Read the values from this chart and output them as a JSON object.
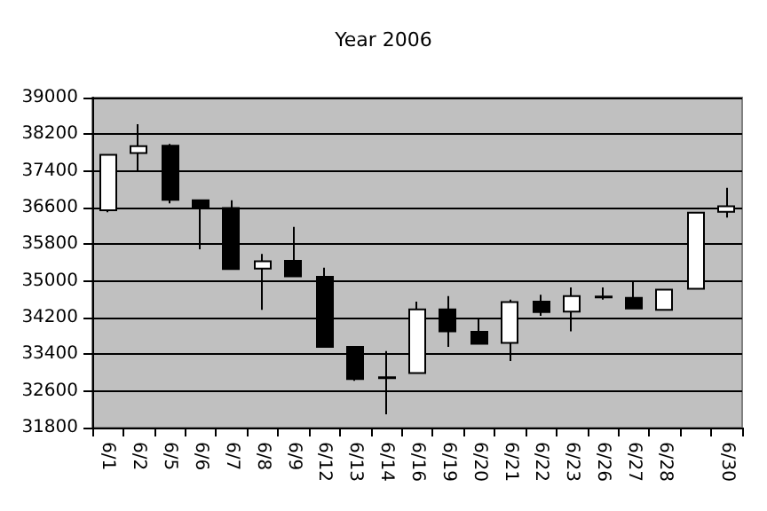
{
  "chart_data": {
    "type": "candlestick",
    "title": "Year 2006",
    "categories": [
      "6/1",
      "6/2",
      "6/5",
      "6/6",
      "6/7",
      "6/8",
      "6/9",
      "6/12",
      "6/13",
      "6/14",
      "6/16",
      "6/19",
      "6/20",
      "6/21",
      "6/22",
      "6/23",
      "6/26",
      "6/27",
      "6/28",
      null,
      "6/30"
    ],
    "ohlc": [
      [
        36540,
        37750,
        36500,
        37750
      ],
      [
        37790,
        38420,
        37410,
        37940
      ],
      [
        37950,
        37990,
        36690,
        36770
      ],
      [
        36760,
        36760,
        35690,
        36590
      ],
      [
        36590,
        36760,
        35260,
        35260
      ],
      [
        35270,
        35590,
        34370,
        35430
      ],
      [
        35440,
        36180,
        35100,
        35100
      ],
      [
        35090,
        35290,
        33560,
        33560
      ],
      [
        33560,
        33580,
        32820,
        32860
      ],
      [
        32900,
        33470,
        32090,
        32880
      ],
      [
        32990,
        34550,
        32990,
        34380
      ],
      [
        34380,
        34670,
        33560,
        33900
      ],
      [
        33890,
        34180,
        33630,
        33630
      ],
      [
        33650,
        34590,
        33250,
        34540
      ],
      [
        34550,
        34700,
        34240,
        34320
      ],
      [
        34330,
        34860,
        33900,
        34670
      ],
      [
        34660,
        34860,
        34590,
        34640
      ],
      [
        34630,
        35000,
        34400,
        34400
      ],
      [
        34370,
        34810,
        34370,
        34810
      ],
      [
        34830,
        36490,
        34830,
        36490
      ],
      [
        36510,
        37030,
        36380,
        36630
      ]
    ],
    "colors": [
      "#ffffff",
      "#ffffff",
      "#000000",
      "#000000",
      "#000000",
      "#ffffff",
      "#000000",
      "#000000",
      "#000000",
      "#000000",
      "#ffffff",
      "#000000",
      "#000000",
      "#ffffff",
      "#000000",
      "#ffffff",
      "#000000",
      "#000000",
      "#ffffff",
      "#ffffff",
      "#ffffff"
    ],
    "ylim": [
      31800,
      39000
    ],
    "yticks": [
      31800,
      32600,
      33400,
      34200,
      35000,
      35800,
      36600,
      37400,
      38200,
      39000
    ],
    "grid": "y"
  }
}
